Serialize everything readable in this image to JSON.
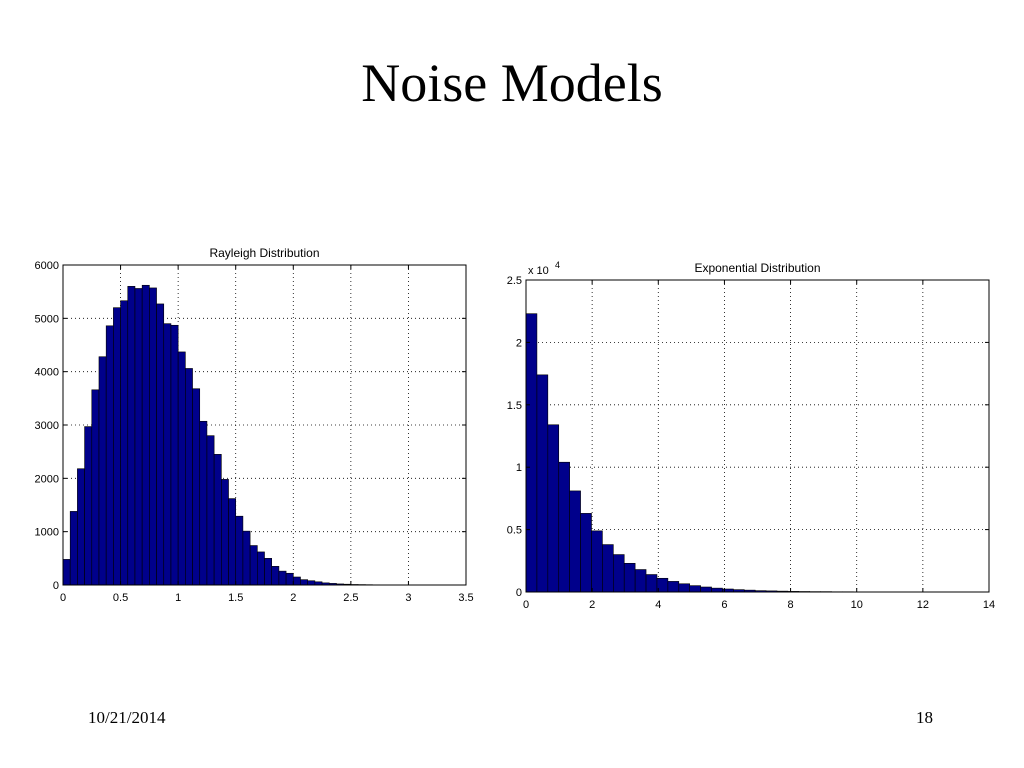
{
  "slide": {
    "title": "Noise Models",
    "date": "10/21/2014",
    "page_number": "18"
  },
  "colors": {
    "bar_fill": "#00008b",
    "bar_edge": "#000000",
    "grid": "#000000"
  },
  "chart_data": [
    {
      "type": "bar",
      "title": "Rayleigh Distribution",
      "xlabel": "",
      "ylabel": "",
      "xlim": [
        0,
        3.5
      ],
      "ylim": [
        0,
        6000
      ],
      "xticks": [
        0,
        0.5,
        1,
        1.5,
        2,
        2.5,
        3,
        3.5
      ],
      "xtick_labels": [
        "0",
        "0.5",
        "1",
        "1.5",
        "2",
        "2.5",
        "3",
        "3.5"
      ],
      "yticks": [
        0,
        1000,
        2000,
        3000,
        4000,
        5000,
        6000
      ],
      "ytick_labels": [
        "0",
        "1000",
        "2000",
        "3000",
        "4000",
        "5000",
        "6000"
      ],
      "exponent_label": "",
      "grid": true,
      "bin_start": 0,
      "bin_width": 0.0625,
      "values": [
        480,
        1380,
        2180,
        2970,
        3660,
        4280,
        4860,
        5200,
        5330,
        5600,
        5560,
        5620,
        5570,
        5270,
        4900,
        4870,
        4370,
        4060,
        3680,
        3070,
        2800,
        2450,
        1980,
        1620,
        1290,
        1010,
        740,
        620,
        500,
        350,
        260,
        220,
        150,
        100,
        80,
        60,
        40,
        30,
        20,
        15,
        10,
        8,
        6,
        4,
        3,
        2,
        1,
        1,
        0,
        0,
        0,
        0,
        0,
        0,
        0,
        0
      ]
    },
    {
      "type": "bar",
      "title": "Exponential Distribution",
      "xlabel": "",
      "ylabel": "",
      "xlim": [
        0,
        14
      ],
      "ylim": [
        0,
        2.5
      ],
      "xticks": [
        0,
        2,
        4,
        6,
        8,
        10,
        12,
        14
      ],
      "xtick_labels": [
        "0",
        "2",
        "4",
        "6",
        "8",
        "10",
        "12",
        "14"
      ],
      "yticks": [
        0,
        0.5,
        1,
        1.5,
        2,
        2.5
      ],
      "ytick_labels": [
        "0",
        "0.5",
        "1",
        "1.5",
        "2",
        "2.5"
      ],
      "exponent_label": "x 10",
      "exponent_power": "4",
      "grid": true,
      "bin_start": 0,
      "bin_width": 0.33,
      "values": [
        2.23,
        1.74,
        1.34,
        1.04,
        0.81,
        0.63,
        0.49,
        0.38,
        0.3,
        0.23,
        0.18,
        0.14,
        0.11,
        0.085,
        0.066,
        0.051,
        0.04,
        0.031,
        0.024,
        0.019,
        0.015,
        0.011,
        0.009,
        0.007,
        0.005,
        0.004,
        0.003,
        0.003,
        0.002,
        0.002,
        0.001,
        0.001,
        0.001,
        0.001,
        0.001,
        0.001,
        0.001,
        0.001,
        0.001
      ]
    }
  ]
}
